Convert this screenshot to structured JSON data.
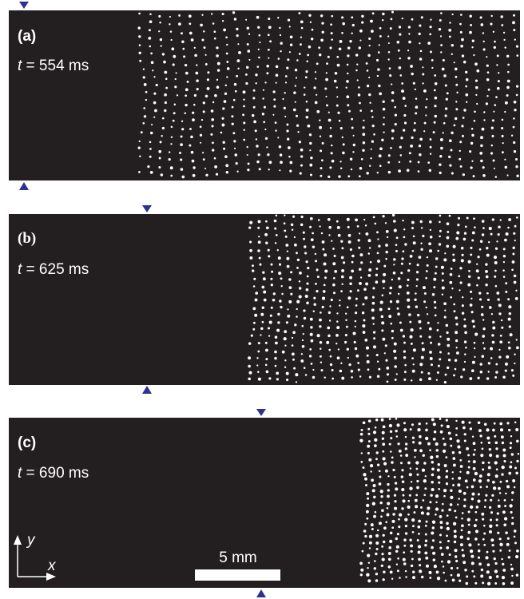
{
  "panels": [
    {
      "label": "(a)",
      "time": {
        "var": "t",
        "rest": "= 554 ms"
      }
    },
    {
      "label": "(b)",
      "time": {
        "var": "t",
        "rest": "= 625 ms"
      }
    },
    {
      "label": "(c)",
      "time": {
        "var": "t",
        "rest": "= 690 ms"
      }
    }
  ],
  "axes": {
    "y": "y",
    "x": "x"
  },
  "scale_bar": "5 mm"
}
